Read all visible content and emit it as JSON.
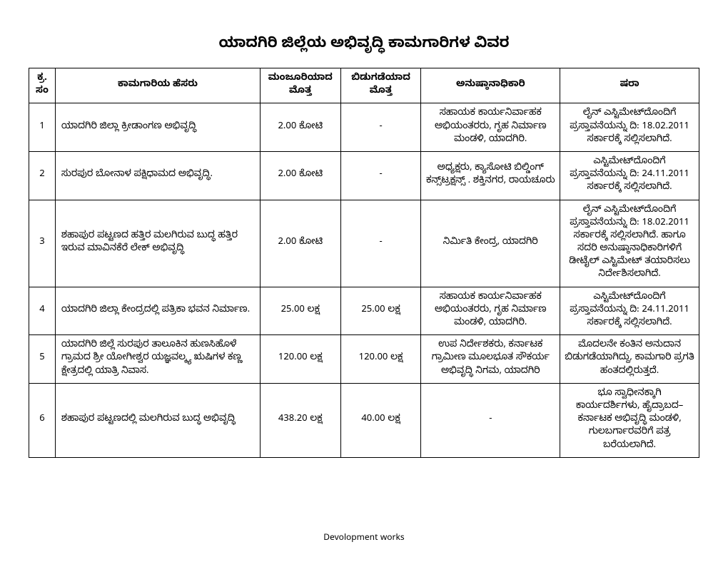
{
  "title": "ಯಾದಗಿರಿ ಜಿಲ್ಲೆಯ ಅಭಿವೃದ್ಧಿ ಕಾಮಗಾರಿಗಳ ವಿವರ",
  "footer": "Devolopment works",
  "headers": {
    "sl": "ಕ್ರ.ಸಂ",
    "name": "ಕಾಮಗಾರಿಯ ಹೆಸರು",
    "sanctioned": "ಮಂಜೂರಿಯಾದ ಮೊತ್ತ",
    "released": "ಬಿಡುಗಡೆಯಾದ ಮೊತ್ತ",
    "authority": "ಅನುಷ್ಠಾನಾಧಿಕಾರಿ",
    "remarks": "ಷರಾ"
  },
  "rows": [
    {
      "sl": "1",
      "name": "ಯಾದಗಿರಿ ಜಿಲ್ಲಾ ಕ್ರೀಡಾಂಗಣ ಅಭಿವೃದ್ಧಿ",
      "sanctioned": "2.00  ಕೋಟಿ",
      "released": "-",
      "authority": "ಸಹಾಯಕ ಕಾರ್ಯನಿರ್ವಾಹಕ ಅಭಿಯಂತರರು, ಗೃಹ ನಿರ್ಮಾಣ ಮಂಡಳಿ, ಯಾದಗಿರಿ.",
      "remarks": "ಲೈನ್ ಎಸ್ಟಿಮೇಟ್‌ದೊಂದಿಗೆ ಪ್ರಸ್ತಾವನೆಯನ್ನು ದಿ: 18.02.2011 ಸರ್ಕಾರಕ್ಕೆ ಸಲ್ಲಿಸಲಾಗಿದೆ."
    },
    {
      "sl": "2",
      "name": "ಸುರಪುರ ಬೋನಾಳ ಪಕ್ಷಿಧಾಮದ ಅಭಿವೃದ್ಧಿ.",
      "sanctioned": "2.00  ಕೋಟಿ",
      "released": "-",
      "authority": "ಅಧ್ಯಕ್ಷರು, ಕ್ಯಾಸೋಟಿ ಬಿಲ್ಡಿಂಗ್ ಕನ್ಸ್‌ಟ್ರಕ್ಷನ್ಸ್ . ಶಕ್ತಿನಗರ, ರಾಯಚೂರು",
      "remarks": "ಎಸ್ಟಿಮೇಟ್‌ದೊಂದಿಗೆ ಪ್ರಸ್ತಾವನೆಯನ್ನು ದಿ: 24.11.2011 ಸರ್ಕಾರಕ್ಕೆ ಸಲ್ಲಿಸಲಾಗಿದೆ."
    },
    {
      "sl": "3",
      "name": "ಶಹಾಪುರ ಪಟ್ಟಣದ ಹತ್ತಿರ ಮಲಗಿರುವ ಬುದ್ಧ ಹತ್ತಿರ ಇರುವ ಮಾವಿನಕೆರೆ ಲೇಕ್ ಅಭಿವೃದ್ಧಿ",
      "sanctioned": "2.00 ಕೋಟಿ",
      "released": "-",
      "authority": "ನಿರ್ಮಿತಿ ಕೇಂದ್ರ, ಯಾದಗಿರಿ",
      "remarks": "ಲೈನ್ ಎಸ್ಟಿಮೇಟ್‌ದೊಂದಿಗೆ ಪ್ರಸ್ತಾವನೆಯನ್ನು ದಿ: 18.02.2011 ಸರ್ಕಾರಕ್ಕೆ ಸಲ್ಲಿಸಲಾಗಿದೆ. ಹಾಗೂ ಸದರಿ ಅನುಷ್ಠಾನಾಧಿಕಾರಿಗಳಿಗೆ ಡೀಟೈಲ್ ಎಸ್ಟಿಮೇಟ್ ತಯಾರಿಸಲು ನಿರ್ದೇಶಿಸಲಾಗಿದೆ."
    },
    {
      "sl": "4",
      "name": "ಯಾದಗಿರಿ ಜಿಲ್ಲಾ ಕೇಂದ್ರದಲ್ಲಿ ಪತ್ರಿಕಾ ಭವನ ನಿರ್ಮಾಣ.",
      "sanctioned": "25.00 ಲಕ್ಷ",
      "released": "25.00 ಲಕ್ಷ",
      "authority": "ಸಹಾಯಕ ಕಾರ್ಯನಿರ್ವಾಹಕ ಅಭಿಯಂತರರು, ಗೃಹ ನಿರ್ಮಾಣ ಮಂಡಳಿ, ಯಾದಗಿರಿ.",
      "remarks": "ಎಸ್ಟಿಮೇಟ್‌ದೊಂದಿಗೆ ಪ್ರಸ್ತಾವನೆಯನ್ನು ದಿ: 24.11.2011 ಸರ್ಕಾರಕ್ಕೆ ಸಲ್ಲಿಸಲಾಗಿದೆ."
    },
    {
      "sl": "5",
      "name": "ಯಾದಗಿರಿ ಜಿಲ್ಲೆ ಸುರಪುರ ತಾಲೂಕಿನ ಹುಣಸಿಹೊಳೆ ಗ್ರಾಮದ ಶ್ರೀ ಯೋಗೀಶ್ವರ ಯಜ್ಞವಲ್ಕ್ಯ ಋಷಿಗಳ ಕಣ್ಣ ಕ್ಷೇತ್ರದಲ್ಲಿ ಯಾತ್ರಿ ನಿವಾಸ.",
      "sanctioned": "120.00 ಲಕ್ಷ",
      "released": "120.00 ಲಕ್ಷ",
      "authority": "ಉಪ ನಿರ್ದೇಶಕರು, ಕರ್ನಾಟಕ ಗ್ರಾಮೀಣ ಮೂಲಭೂತ ಸೌಕರ್ಯ ಅಭಿವೃದ್ಧಿ ನಿಗಮ, ಯಾದಗಿರಿ",
      "remarks": "ಮೊದಲನೇ ಕಂತಿನ ಅನುದಾನ ಬಿಡುಗಡೆಯಾಗಿದ್ದು, ಕಾಮಗಾರಿ ಪ್ರಗತಿ ಹಂತದಲ್ಲಿರುತ್ತದೆ."
    },
    {
      "sl": "6",
      "name": "ಶಹಾಪುರ ಪಟ್ಟಣದಲ್ಲಿ ಮಲಗಿರುವ ಬುದ್ಧ ಅಭಿವೃದ್ಧಿ",
      "sanctioned": "438.20 ಲಕ್ಷ",
      "released": "40.00 ಲಕ್ಷ",
      "authority": "-",
      "remarks": "ಭೂ ಸ್ವಾಧೀನಕ್ಕಾಗಿ ಕಾರ್ಯದರ್ಶಿಗಳು, ಹೈದ್ರಾಬದ–ಕರ್ನಾಟಕ ಅಭಿವೃದ್ಧಿ ಮಂಡಳಿ, ಗುಲಬರ್ಗಾರವರಿಗೆ ಪತ್ರ ಬರೆಯಲಾಗಿದೆ."
    }
  ]
}
